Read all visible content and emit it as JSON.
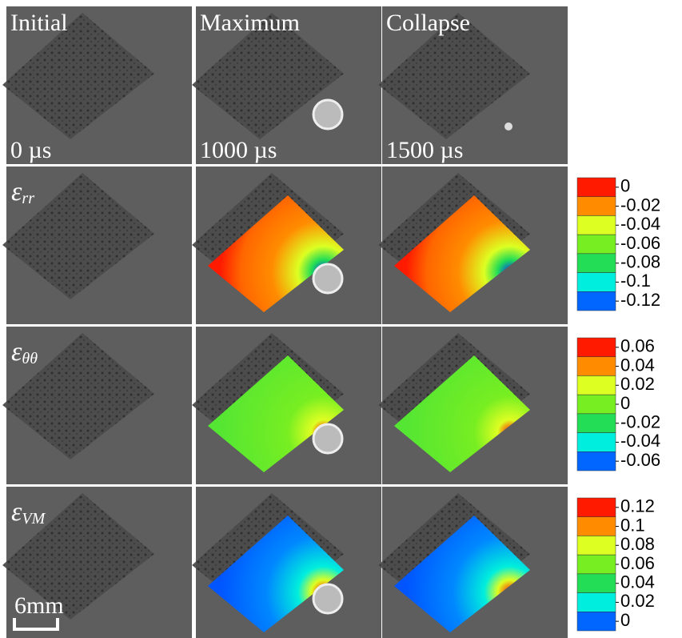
{
  "columns": [
    {
      "title": "Initial",
      "time": "0 µs"
    },
    {
      "title": "Maximum",
      "time": "1000 µs"
    },
    {
      "title": "Collapse",
      "time": "1500 µs"
    }
  ],
  "rows": [
    {
      "symbol": "ε",
      "subscript": "rr"
    },
    {
      "symbol": "ε",
      "subscript": "θθ"
    },
    {
      "symbol": "ε",
      "subscript": "VM"
    }
  ],
  "colorbars": [
    {
      "ticks": [
        0,
        -0.02,
        -0.04,
        -0.06,
        -0.08,
        -0.1,
        -0.12
      ],
      "colors": [
        "#ff1a00",
        "#ff8c00",
        "#ddff22",
        "#77ee22",
        "#22dd55",
        "#00eedd",
        "#0066ff"
      ]
    },
    {
      "ticks": [
        0.06,
        0.04,
        0.02,
        0,
        -0.02,
        -0.04,
        -0.06
      ],
      "colors": [
        "#ff1a00",
        "#ff8c00",
        "#ddff22",
        "#77ee22",
        "#22dd55",
        "#00eedd",
        "#0066ff"
      ]
    },
    {
      "ticks": [
        0.12,
        0.1,
        0.08,
        0.06,
        0.04,
        0.02,
        0
      ],
      "colors": [
        "#ff1a00",
        "#ff8c00",
        "#ddff22",
        "#77ee22",
        "#22dd55",
        "#00eedd",
        "#0066ff"
      ]
    }
  ],
  "scale_bar": "6mm"
}
